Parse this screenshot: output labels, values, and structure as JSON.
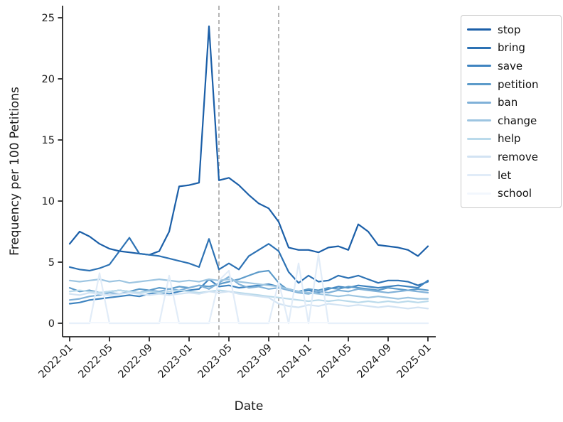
{
  "figure": {
    "background": "#ffffff"
  },
  "axes": {
    "spine_color": "#262626",
    "tick_color": "#262626",
    "x_tick_labels": [
      "2022-01",
      "2022-05",
      "2022-09",
      "2023-01",
      "2023-05",
      "2023-09",
      "2024-01",
      "2024-05",
      "2024-09",
      "2025-01"
    ],
    "y_tick_labels": [
      "0",
      "5",
      "10",
      "15",
      "20",
      "25"
    ],
    "x_tick_rotation": 45
  },
  "legend": {
    "border_color": "#c9c9c9",
    "position": "outside-upper-right"
  },
  "chart_data": {
    "type": "line",
    "title": "",
    "xlabel": "Date",
    "ylabel": "Frequency per 100 Petitions",
    "x": [
      "2022-01",
      "2022-02",
      "2022-03",
      "2022-04",
      "2022-05",
      "2022-06",
      "2022-07",
      "2022-08",
      "2022-09",
      "2022-10",
      "2022-11",
      "2022-12",
      "2023-01",
      "2023-02",
      "2023-03",
      "2023-04",
      "2023-05",
      "2023-06",
      "2023-07",
      "2023-08",
      "2023-09",
      "2023-10",
      "2023-11",
      "2023-12",
      "2024-01",
      "2024-02",
      "2024-03",
      "2024-04",
      "2024-05",
      "2024-06",
      "2024-07",
      "2024-08",
      "2024-09",
      "2024-10",
      "2024-11",
      "2024-12",
      "2025-01"
    ],
    "xticks_shown": [
      "2022-01",
      "2022-05",
      "2022-09",
      "2023-01",
      "2023-05",
      "2023-09",
      "2024-01",
      "2024-05",
      "2024-09",
      "2025-01"
    ],
    "yticks": [
      0,
      5,
      10,
      15,
      20,
      25
    ],
    "ylim": [
      -1.05,
      25.9
    ],
    "grid": false,
    "legend_position": "upper right outside",
    "vlines": [
      {
        "x": "2023-04",
        "style": "dashed",
        "color": "#a3a3a3"
      },
      {
        "x": "2023-10",
        "style": "dashed",
        "color": "#a3a3a3"
      }
    ],
    "series": [
      {
        "name": "stop",
        "color": "#1b5fa8",
        "values": [
          6.5,
          7.5,
          7.1,
          6.5,
          6.1,
          5.9,
          5.8,
          5.7,
          5.6,
          5.9,
          7.5,
          11.2,
          11.3,
          11.5,
          24.3,
          11.7,
          11.9,
          11.3,
          10.5,
          9.8,
          9.4,
          8.3,
          6.2,
          6.0,
          6.0,
          5.8,
          6.2,
          6.3,
          6.0,
          8.1,
          7.5,
          6.4,
          6.3,
          6.2,
          6.0,
          5.5,
          6.3
        ]
      },
      {
        "name": "bring",
        "color": "#2d72b4",
        "values": [
          4.6,
          4.4,
          4.3,
          4.5,
          4.8,
          5.9,
          7.0,
          5.7,
          5.6,
          5.5,
          5.3,
          5.1,
          4.9,
          4.6,
          6.9,
          4.4,
          4.9,
          4.4,
          5.5,
          6.0,
          6.5,
          5.9,
          4.2,
          3.3,
          3.9,
          3.4,
          3.5,
          3.9,
          3.7,
          3.9,
          3.6,
          3.3,
          3.5,
          3.5,
          3.4,
          3.1,
          3.4
        ]
      },
      {
        "name": "save",
        "color": "#3f84c0",
        "values": [
          1.6,
          1.7,
          1.9,
          2.0,
          2.1,
          2.2,
          2.3,
          2.2,
          2.4,
          2.5,
          2.4,
          2.6,
          2.7,
          2.8,
          3.6,
          3.0,
          3.1,
          2.9,
          3.0,
          3.1,
          3.2,
          3.0,
          2.8,
          2.6,
          2.7,
          2.5,
          2.8,
          3.0,
          2.9,
          3.1,
          3.0,
          2.9,
          3.0,
          3.1,
          3.0,
          2.9,
          3.5
        ]
      },
      {
        "name": "petition",
        "color": "#5d9bca",
        "values": [
          2.9,
          2.6,
          2.7,
          2.5,
          2.6,
          2.7,
          2.6,
          2.8,
          2.7,
          2.9,
          2.8,
          3.0,
          2.9,
          3.1,
          3.0,
          3.2,
          3.4,
          3.6,
          3.9,
          4.2,
          4.3,
          3.3,
          2.7,
          2.6,
          2.8,
          2.7,
          2.9,
          2.8,
          3.0,
          2.9,
          2.8,
          2.7,
          2.9,
          2.8,
          2.7,
          2.8,
          2.7
        ]
      },
      {
        "name": "ban",
        "color": "#80b1d8",
        "values": [
          1.9,
          2.0,
          2.2,
          2.3,
          2.5,
          2.4,
          2.6,
          2.5,
          2.7,
          2.6,
          2.8,
          2.7,
          2.9,
          3.1,
          2.8,
          3.3,
          3.8,
          3.2,
          2.9,
          3.0,
          2.8,
          2.9,
          2.7,
          2.5,
          2.4,
          2.6,
          2.5,
          2.7,
          2.6,
          2.8,
          2.7,
          2.6,
          2.5,
          2.6,
          2.7,
          2.6,
          2.5
        ]
      },
      {
        "name": "change",
        "color": "#9dc5e1",
        "values": [
          3.5,
          3.4,
          3.5,
          3.6,
          3.4,
          3.5,
          3.3,
          3.4,
          3.5,
          3.6,
          3.5,
          3.4,
          3.5,
          3.4,
          3.6,
          3.5,
          3.6,
          3.4,
          3.3,
          3.2,
          3.1,
          3.0,
          2.8,
          2.6,
          2.5,
          2.4,
          2.3,
          2.2,
          2.3,
          2.2,
          2.1,
          2.2,
          2.1,
          2.0,
          2.1,
          2.0,
          2.0
        ]
      },
      {
        "name": "help",
        "color": "#badaeb",
        "values": [
          2.6,
          2.7,
          2.6,
          2.5,
          2.6,
          2.7,
          2.6,
          2.5,
          2.6,
          2.5,
          2.6,
          2.7,
          2.6,
          2.5,
          2.6,
          2.7,
          2.6,
          2.5,
          2.4,
          2.3,
          2.2,
          2.1,
          2.0,
          1.9,
          1.8,
          1.9,
          1.8,
          1.9,
          1.8,
          1.7,
          1.8,
          1.7,
          1.8,
          1.7,
          1.8,
          1.7,
          1.8
        ]
      },
      {
        "name": "remove",
        "color": "#d2e3f3",
        "values": [
          2.4,
          2.3,
          2.5,
          2.4,
          2.3,
          2.4,
          2.5,
          2.4,
          2.3,
          2.4,
          2.3,
          2.4,
          2.5,
          2.4,
          2.6,
          2.5,
          2.6,
          2.4,
          2.3,
          2.2,
          2.1,
          1.6,
          1.4,
          1.3,
          1.5,
          1.4,
          1.6,
          1.5,
          1.4,
          1.5,
          1.4,
          1.3,
          1.4,
          1.3,
          1.2,
          1.3,
          1.2
        ]
      },
      {
        "name": "let",
        "color": "#e1ecf8",
        "values": [
          0,
          0,
          0,
          4.1,
          0,
          0,
          0,
          0,
          0,
          0,
          3.9,
          0,
          0,
          0,
          0,
          3.5,
          4.3,
          0,
          0,
          0,
          0,
          3.4,
          0,
          4.9,
          0,
          5.6,
          0,
          0,
          0,
          0,
          0,
          0,
          0,
          0,
          0,
          0,
          0
        ]
      },
      {
        "name": "school",
        "color": "#f2f7fd",
        "values": [
          0.05,
          0.05,
          0.05,
          0.05,
          0.05,
          0.05,
          0.05,
          0.05,
          0.05,
          0.05,
          0.05,
          0.05,
          0.05,
          0.05,
          0.05,
          0.05,
          0.05,
          0.05,
          0.05,
          0.05,
          0.05,
          0.05,
          0.05,
          0.05,
          0.05,
          0.05,
          0.05,
          0.05,
          0.05,
          0.05,
          0.05,
          0.05,
          0.05,
          0.05,
          0.05,
          0.05,
          0.05
        ]
      }
    ]
  }
}
